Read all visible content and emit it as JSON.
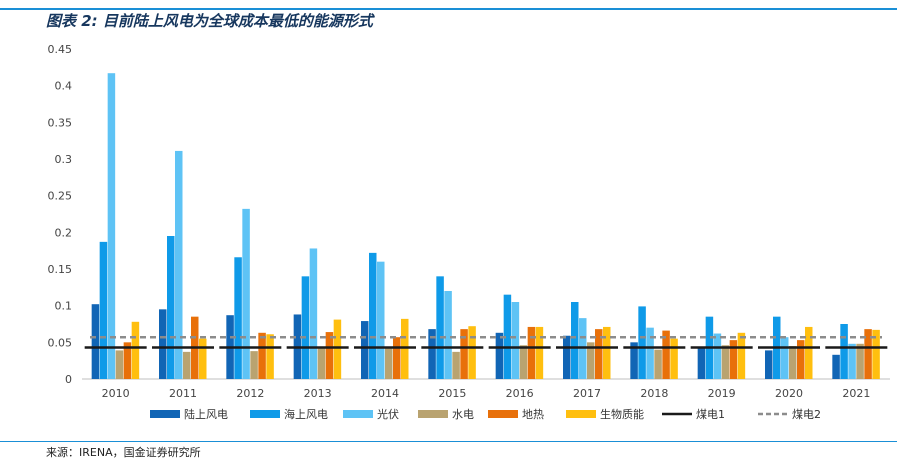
{
  "header": {
    "title": "图表 2: 目前陆上风电为全球成本最低的能源形式"
  },
  "footer": {
    "source": "来源：IRENA，国金证券研究所"
  },
  "chart_data": {
    "type": "bar",
    "title": "",
    "xlabel": "",
    "ylabel": "",
    "categories": [
      "2010",
      "2011",
      "2012",
      "2013",
      "2014",
      "2015",
      "2016",
      "2017",
      "2018",
      "2019",
      "2020",
      "2021"
    ],
    "ylim": [
      0,
      0.45
    ],
    "yticks": [
      "0",
      "0.05",
      "0.1",
      "0.15",
      "0.2",
      "0.25",
      "0.3",
      "0.35",
      "0.4",
      "0.45"
    ],
    "legend_position": "bottom",
    "series": [
      {
        "name": "陆上风电",
        "color": "#1165b5",
        "values": [
          0.102,
          0.095,
          0.087,
          0.088,
          0.079,
          0.068,
          0.063,
          0.059,
          0.05,
          0.043,
          0.039,
          0.033
        ]
      },
      {
        "name": "海上风电",
        "color": "#0f9ae8",
        "values": [
          0.187,
          0.195,
          0.166,
          0.14,
          0.172,
          0.14,
          0.115,
          0.105,
          0.099,
          0.085,
          0.085,
          0.075
        ]
      },
      {
        "name": "光伏",
        "color": "#5ec3f5",
        "values": [
          0.417,
          0.311,
          0.232,
          0.178,
          0.16,
          0.12,
          0.105,
          0.083,
          0.07,
          0.062,
          0.057,
          0.048
        ]
      },
      {
        "name": "水电",
        "color": "#b9a370",
        "values": [
          0.039,
          0.037,
          0.038,
          0.044,
          0.044,
          0.037,
          0.046,
          0.05,
          0.04,
          0.046,
          0.045,
          0.048
        ]
      },
      {
        "name": "地热",
        "color": "#e8700a",
        "values": [
          0.05,
          0.085,
          0.063,
          0.064,
          0.057,
          0.068,
          0.071,
          0.068,
          0.066,
          0.053,
          0.053,
          0.068
        ]
      },
      {
        "name": "生物质能",
        "color": "#ffbf0f",
        "values": [
          0.078,
          0.055,
          0.061,
          0.081,
          0.082,
          0.072,
          0.071,
          0.071,
          0.055,
          0.063,
          0.071,
          0.067
        ]
      }
    ],
    "reference_lines": [
      {
        "name": "煤电1",
        "color": "#1a1a1a",
        "style": "solid",
        "value": 0.043
      },
      {
        "name": "煤电2",
        "color": "#8c8c8c",
        "style": "dashed",
        "value": 0.057
      }
    ]
  }
}
